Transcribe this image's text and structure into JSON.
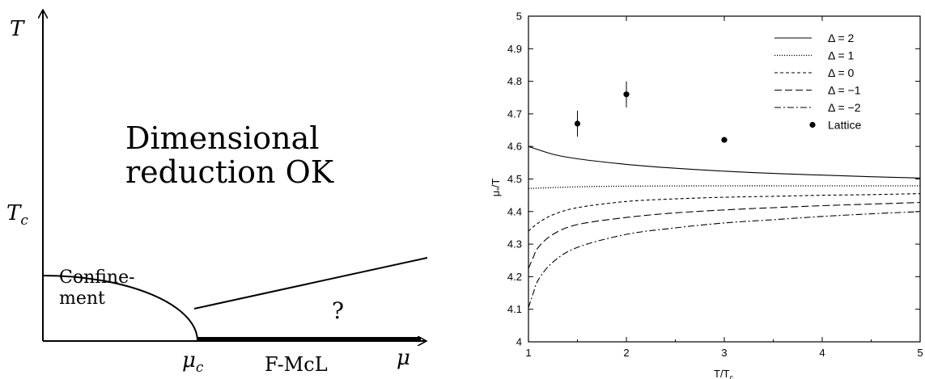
{
  "phase_diagram": {
    "y_axis_label": "T",
    "tc_label": "T",
    "tc_sub": "c",
    "region_top_line1": "Dimensional",
    "region_top_line2": "reduction OK",
    "region_left_line1": "Confine-",
    "region_left_line2": "ment",
    "region_right": "?",
    "mu_c_label": "μ",
    "mu_c_sub": "c",
    "phase_label": "F-McL",
    "x_axis_label": "μ"
  },
  "chart_data": {
    "type": "line",
    "xlabel": "T/T",
    "xlabel_sub": "c",
    "ylabel": "μ",
    "ylabel_sub": "*",
    "ylabel_suffix": "/T",
    "xlim": [
      1,
      5
    ],
    "ylim": [
      4,
      5
    ],
    "x_ticks": [
      "1",
      "2",
      "3",
      "4",
      "5"
    ],
    "y_ticks": [
      "4",
      "4.1",
      "4.2",
      "4.3",
      "4.4",
      "4.5",
      "4.6",
      "4.7",
      "4.8",
      "4.9",
      "5"
    ],
    "legend_position": "top-right",
    "series": [
      {
        "name": "Δ = 2",
        "style": "solid",
        "x": [
          1,
          1.25,
          1.5,
          2,
          2.5,
          3,
          3.5,
          4,
          4.5,
          5
        ],
        "y": [
          4.6,
          4.576,
          4.562,
          4.545,
          4.533,
          4.524,
          4.517,
          4.512,
          4.507,
          4.503
        ]
      },
      {
        "name": "Δ = 1",
        "style": "dotted",
        "x": [
          1,
          1.5,
          2,
          3,
          4,
          5
        ],
        "y": [
          4.471,
          4.476,
          4.478,
          4.479,
          4.479,
          4.479
        ]
      },
      {
        "name": "Δ = 0",
        "style": "dashed",
        "x": [
          1,
          1.1,
          1.25,
          1.5,
          2,
          2.5,
          3,
          3.5,
          4,
          4.5,
          5
        ],
        "y": [
          4.34,
          4.365,
          4.39,
          4.412,
          4.431,
          4.439,
          4.444,
          4.447,
          4.45,
          4.452,
          4.455
        ]
      },
      {
        "name": "Δ = −1",
        "style": "longdash",
        "x": [
          1,
          1.05,
          1.1,
          1.25,
          1.5,
          2,
          2.5,
          3,
          3.5,
          4,
          4.5,
          5
        ],
        "y": [
          4.225,
          4.26,
          4.29,
          4.33,
          4.36,
          4.382,
          4.396,
          4.405,
          4.412,
          4.418,
          4.423,
          4.428
        ]
      },
      {
        "name": "Δ = −2",
        "style": "dashdot",
        "x": [
          1,
          1.05,
          1.1,
          1.25,
          1.5,
          2,
          2.5,
          3,
          3.5,
          4,
          4.5,
          5
        ],
        "y": [
          4.105,
          4.15,
          4.19,
          4.245,
          4.29,
          4.33,
          4.35,
          4.365,
          4.375,
          4.385,
          4.393,
          4.4
        ]
      }
    ],
    "points": {
      "name": "Lattice",
      "x": [
        1.5,
        2,
        3
      ],
      "y": [
        4.67,
        4.76,
        4.62
      ],
      "err": [
        0.04,
        0.04,
        0.005
      ]
    }
  }
}
